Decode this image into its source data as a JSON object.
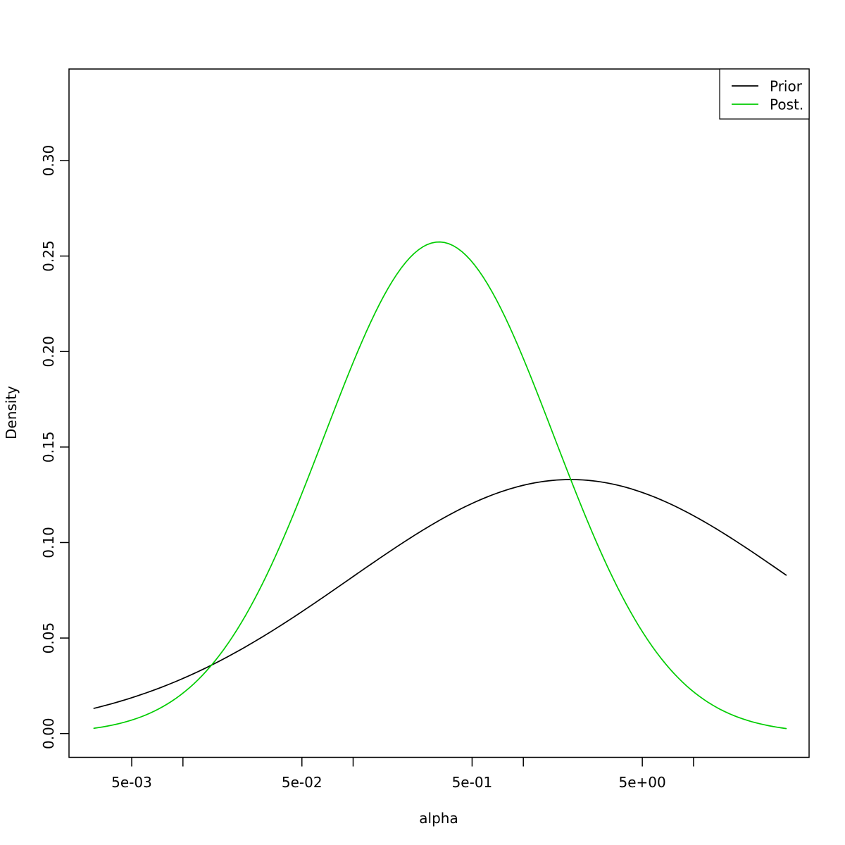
{
  "figure": {
    "background": "#ffffff",
    "text_color": "#000000"
  },
  "chart_data": {
    "type": "line",
    "title": "",
    "xlabel": "alpha",
    "ylabel": "Density",
    "x_scale": "log10",
    "grid": false,
    "legend_position": "topright",
    "x_range": [
      0.003,
      35
    ],
    "xlim_log10": [
      -2.6694,
      1.6789
    ],
    "ylim": [
      -0.01246,
      0.34793
    ],
    "x_ticks": [
      {
        "value": 0.005,
        "label": "5e-03"
      },
      {
        "value": 0.01,
        "label": ""
      },
      {
        "value": 0.05,
        "label": "5e-02"
      },
      {
        "value": 0.1,
        "label": ""
      },
      {
        "value": 0.5,
        "label": "5e-01"
      },
      {
        "value": 1,
        "label": ""
      },
      {
        "value": 5,
        "label": "5e+00"
      },
      {
        "value": 10,
        "label": ""
      }
    ],
    "y_ticks": [
      {
        "value": 0.0,
        "label": "0.00"
      },
      {
        "value": 0.05,
        "label": "0.05"
      },
      {
        "value": 0.1,
        "label": "0.10"
      },
      {
        "value": 0.15,
        "label": "0.15"
      },
      {
        "value": 0.2,
        "label": "0.20"
      },
      {
        "value": 0.25,
        "label": "0.25"
      },
      {
        "value": 0.3,
        "label": "0.30"
      }
    ],
    "series": [
      {
        "name": "Prior",
        "color": "#000000",
        "curve": {
          "shape": "gaussian-in-log-alpha",
          "space": "ln",
          "mean": 0.64,
          "sd": 3.0,
          "peak_density": 0.133,
          "peak_alpha": 1.9
        },
        "x": [
          0.003,
          0.005,
          0.008,
          0.013,
          0.022,
          0.036,
          0.06,
          0.1,
          0.16,
          0.27,
          0.45,
          0.74,
          1.22,
          2,
          3.3,
          5.5,
          9,
          15,
          25,
          35
        ],
        "y": [
          0.0132,
          0.0187,
          0.0252,
          0.0335,
          0.0441,
          0.0555,
          0.0686,
          0.0822,
          0.0947,
          0.1077,
          0.1185,
          0.1266,
          0.1316,
          0.133,
          0.1307,
          0.1249,
          0.1162,
          0.1049,
          0.0919,
          0.0829
        ]
      },
      {
        "name": "Post.",
        "color": "#00cc00",
        "curve": {
          "shape": "gaussian-in-log-alpha",
          "space": "ln",
          "mean": -1.14,
          "sd": 1.55,
          "peak_density": 0.258,
          "peak_alpha": 0.32
        },
        "x": [
          0.003,
          0.005,
          0.008,
          0.013,
          0.022,
          0.036,
          0.06,
          0.1,
          0.16,
          0.27,
          0.45,
          0.74,
          1.22,
          2,
          3.3,
          5.5,
          9,
          15,
          25,
          35
        ],
        "y": [
          0.0028,
          0.007,
          0.0152,
          0.0304,
          0.0579,
          0.0954,
          0.1438,
          0.1943,
          0.2329,
          0.2559,
          0.2512,
          0.2223,
          0.1773,
          0.1279,
          0.0829,
          0.0478,
          0.0254,
          0.0118,
          0.0049,
          0.0026
        ]
      }
    ]
  }
}
